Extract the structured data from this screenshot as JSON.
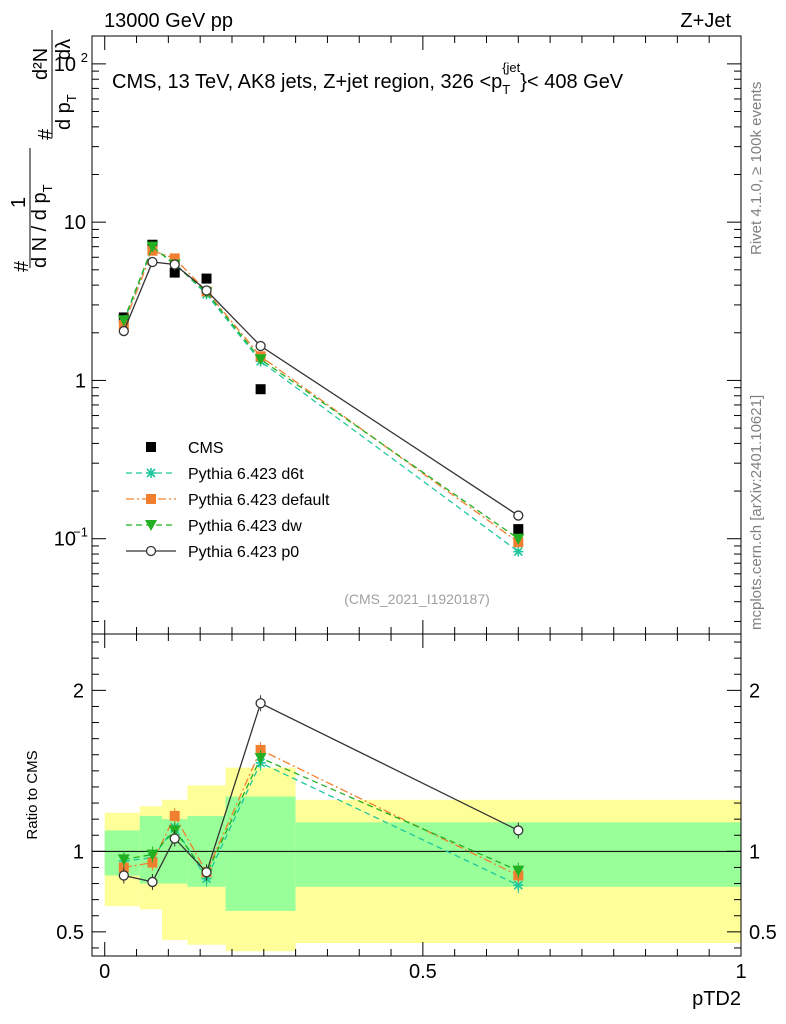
{
  "header": {
    "left": "13000 GeV pp",
    "right": "Z+Jet"
  },
  "side_labels": {
    "rivet": "Rivet 4.1.0, ≥ 100k events",
    "mcplots": "mcplots.cern.ch [arXiv:2401.10621]"
  },
  "chart_data": [
    {
      "type": "line",
      "panel": "main",
      "title": "CMS, 13 TeV, AK8 jets, Z+jet region, 326 <p_T^{jet}< 408 GeV",
      "title_parts": {
        "pre": "CMS, 13 TeV, AK8 jets, Z+jet region, 326 <p",
        "sub": "T",
        "sup": "{jet",
        "close": "}",
        "post": "< 408 GeV"
      },
      "ylabel": "1/(dN/dp_T) d²N/(dp_T dλ)",
      "ylabel_parts": {
        "one": "1",
        "hash": "#",
        "dN": "d N / d p",
        "T": "T",
        "d2N": "d²N",
        "dpT": "d p",
        "dlam": "dλ"
      },
      "yscale": "log",
      "ylim": [
        0.025,
        150
      ],
      "xlim": [
        -0.02,
        1.0
      ],
      "y_ticks": [
        {
          "v": 0.1,
          "label": "10",
          "exp": "−1"
        },
        {
          "v": 1,
          "label": "1",
          "exp": ""
        },
        {
          "v": 10,
          "label": "10",
          "exp": ""
        },
        {
          "v": 100,
          "label": "10",
          "exp": "2"
        }
      ],
      "watermark": "(CMS_2021_I1920187)",
      "series": [
        {
          "name": "CMS",
          "style": "data",
          "color": "#000000",
          "marker": "square",
          "x": [
            0.03,
            0.075,
            0.11,
            0.16,
            0.245,
            0.65
          ],
          "y": [
            2.5,
            7.2,
            4.8,
            4.4,
            0.88,
            0.115
          ]
        },
        {
          "name": "Pythia 6.423 d6t",
          "style": "dashed",
          "color": "#1fc79e",
          "marker": "star",
          "x": [
            0.03,
            0.075,
            0.11,
            0.16,
            0.245,
            0.65
          ],
          "y": [
            2.35,
            6.9,
            5.5,
            3.5,
            1.32,
            0.083
          ]
        },
        {
          "name": "Pythia 6.423 default",
          "style": "dashdot",
          "color": "#f08030",
          "marker": "square",
          "x": [
            0.03,
            0.075,
            0.11,
            0.16,
            0.245,
            0.65
          ],
          "y": [
            2.25,
            6.6,
            5.9,
            3.65,
            1.42,
            0.095
          ]
        },
        {
          "name": "Pythia 6.423 dw",
          "style": "dashed",
          "color": "#22b022",
          "marker": "triangle-down",
          "x": [
            0.03,
            0.075,
            0.11,
            0.16,
            0.245,
            0.65
          ],
          "y": [
            2.4,
            7.0,
            5.4,
            3.6,
            1.36,
            0.1
          ]
        },
        {
          "name": "Pythia 6.423 p0",
          "style": "solid",
          "color": "#333333",
          "marker": "open-circle",
          "x": [
            0.03,
            0.075,
            0.11,
            0.16,
            0.245,
            0.65
          ],
          "y": [
            2.05,
            5.6,
            5.4,
            3.7,
            1.65,
            0.14
          ]
        }
      ]
    },
    {
      "type": "line",
      "panel": "ratio",
      "ylabel": "Ratio to CMS",
      "xlabel": "pTD2",
      "yscale": "linear",
      "ylim": [
        0.35,
        2.35
      ],
      "xlim": [
        -0.02,
        1.0
      ],
      "y_ticks": [
        {
          "v": 0.5,
          "label": "0.5"
        },
        {
          "v": 1,
          "label": "1"
        },
        {
          "v": 2,
          "label": "2"
        }
      ],
      "x_ticks": [
        {
          "v": 0,
          "label": "0"
        },
        {
          "v": 0.5,
          "label": "0.5"
        },
        {
          "v": 1,
          "label": "1"
        }
      ],
      "uncertainty_bands": {
        "bin_edges": [
          0,
          0.055,
          0.09,
          0.13,
          0.19,
          0.3,
          1.0
        ],
        "inner_lo": [
          0.85,
          0.8,
          0.8,
          0.78,
          0.63,
          0.78
        ],
        "inner_hi": [
          1.13,
          1.22,
          1.2,
          1.22,
          1.34,
          1.18
        ],
        "outer_lo": [
          0.66,
          0.64,
          0.45,
          0.42,
          0.38,
          0.43
        ],
        "outer_hi": [
          1.24,
          1.28,
          1.32,
          1.41,
          1.52,
          1.32
        ],
        "inner_color": "#99ff99",
        "outer_color": "#ffff99"
      },
      "series": [
        {
          "name": "Pythia 6.423 d6t",
          "color": "#1fc79e",
          "style": "dashed",
          "marker": "star",
          "x": [
            0.03,
            0.075,
            0.11,
            0.16,
            0.245,
            0.65
          ],
          "y": [
            0.94,
            0.96,
            1.15,
            0.83,
            1.55,
            0.79
          ]
        },
        {
          "name": "Pythia 6.423 default",
          "color": "#f08030",
          "style": "dashdot",
          "marker": "square",
          "x": [
            0.03,
            0.075,
            0.11,
            0.16,
            0.245,
            0.65
          ],
          "y": [
            0.9,
            0.93,
            1.22,
            0.87,
            1.63,
            0.85
          ]
        },
        {
          "name": "Pythia 6.423 dw",
          "color": "#22b022",
          "style": "dashed",
          "marker": "triangle-down",
          "x": [
            0.03,
            0.075,
            0.11,
            0.16,
            0.245,
            0.65
          ],
          "y": [
            0.95,
            0.98,
            1.13,
            0.86,
            1.58,
            0.88
          ]
        },
        {
          "name": "Pythia 6.423 p0",
          "color": "#333333",
          "style": "solid",
          "marker": "open-circle",
          "x": [
            0.03,
            0.075,
            0.11,
            0.16,
            0.245,
            0.65
          ],
          "y": [
            0.85,
            0.81,
            1.08,
            0.87,
            1.92,
            1.13
          ]
        }
      ]
    }
  ]
}
